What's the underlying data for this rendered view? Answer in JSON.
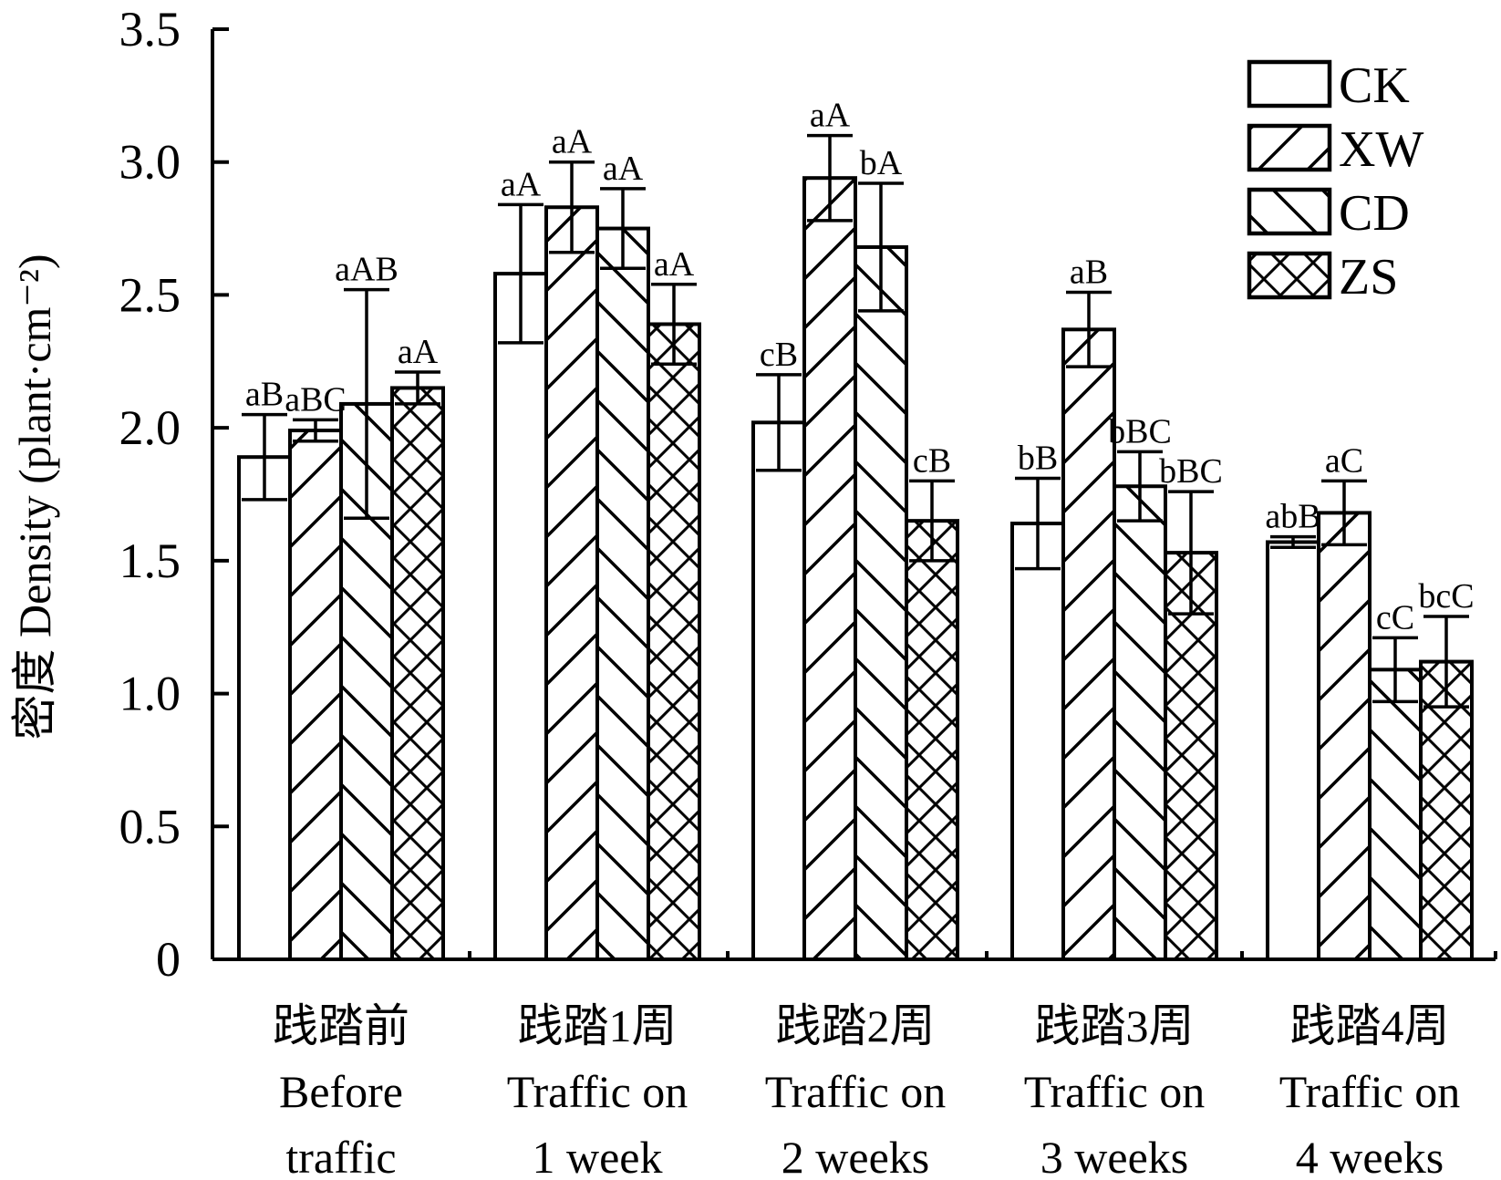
{
  "chart_data": {
    "type": "bar",
    "ylabel": "密度 Density (plant·cm⁻²)",
    "ylim": [
      0,
      3.5
    ],
    "yticks": [
      0,
      0.5,
      1.0,
      1.5,
      2.0,
      2.5,
      3.0,
      3.5
    ],
    "ytick_labels": [
      "0",
      "0.5",
      "1.0",
      "1.5",
      "2.0",
      "2.5",
      "3.0",
      "3.5"
    ],
    "categories": [
      [
        "践踏前",
        "Before",
        "traffic"
      ],
      [
        "践踏1周",
        "Traffic on",
        "1 week"
      ],
      [
        "践踏2周",
        "Traffic on",
        "2 weeks"
      ],
      [
        "践踏3周",
        "Traffic on",
        "3 weeks"
      ],
      [
        "践踏4周",
        "Traffic on",
        "4 weeks"
      ]
    ],
    "legend_position": "top-right",
    "series": [
      {
        "name": "CK",
        "pattern": "none",
        "values": [
          1.89,
          2.58,
          2.02,
          1.64,
          1.57
        ],
        "errors": [
          0.16,
          0.26,
          0.18,
          0.17,
          0.02
        ],
        "labels": [
          "aB",
          "aA",
          "cB",
          "bB",
          "abB"
        ]
      },
      {
        "name": "XW",
        "pattern": "forward-slash",
        "values": [
          1.99,
          2.83,
          2.94,
          2.37,
          1.68
        ],
        "errors": [
          0.04,
          0.17,
          0.16,
          0.14,
          0.12
        ],
        "labels": [
          "aBC",
          "aA",
          "aA",
          "aB",
          "aC"
        ]
      },
      {
        "name": "CD",
        "pattern": "back-slash",
        "values": [
          2.09,
          2.75,
          2.68,
          1.78,
          1.09
        ],
        "errors": [
          0.43,
          0.15,
          0.24,
          0.13,
          0.12
        ],
        "labels": [
          "aAB",
          "aA",
          "bA",
          "bBC",
          "cC"
        ]
      },
      {
        "name": "ZS",
        "pattern": "cross",
        "values": [
          2.15,
          2.39,
          1.65,
          1.53,
          1.12
        ],
        "errors": [
          0.06,
          0.15,
          0.15,
          0.23,
          0.17
        ],
        "labels": [
          "aA",
          "aA",
          "cB",
          "bBC",
          "bcC"
        ]
      }
    ]
  }
}
